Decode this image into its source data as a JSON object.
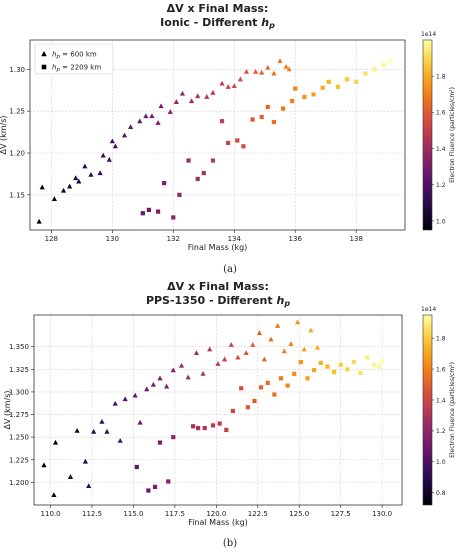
{
  "chart_data": [
    {
      "type": "scatter",
      "title": "ΔV x Final Mass:",
      "subtitle_prefix": "Ionic - Different ",
      "subtitle_var": "h",
      "subtitle_sub": "p",
      "xlabel": "Final Mass (kg)",
      "ylabel": "ΔV (km/s)",
      "xlim": [
        127.3,
        139.6
      ],
      "ylim": [
        1.108,
        1.335
      ],
      "xticks": [
        128,
        130,
        132,
        134,
        136,
        138
      ],
      "yticks": [
        1.15,
        1.2,
        1.25,
        1.3
      ],
      "grid": true,
      "legend_position": "top-left",
      "colorbar": {
        "label": "Electron Fluence (particles/cm²)",
        "exponent": "1e14",
        "min": 0.95,
        "max": 2.0,
        "ticks": [
          1.0,
          1.2,
          1.4,
          1.6,
          1.8
        ]
      },
      "panel_label": "(a)",
      "series": [
        {
          "name": "h_p = 600 km",
          "legend_var": "h",
          "legend_sub": "p",
          "legend_value": " = 600 km",
          "marker": "triangle",
          "points": [
            [
              127.6,
              1.118
            ],
            [
              127.7,
              1.159
            ],
            [
              128.1,
              1.145
            ],
            [
              128.4,
              1.155
            ],
            [
              128.6,
              1.16
            ],
            [
              128.8,
              1.17
            ],
            [
              128.9,
              1.166
            ],
            [
              129.1,
              1.184
            ],
            [
              129.3,
              1.174
            ],
            [
              129.6,
              1.176
            ],
            [
              129.7,
              1.197
            ],
            [
              129.9,
              1.192
            ],
            [
              130.0,
              1.214
            ],
            [
              130.1,
              1.208
            ],
            [
              130.4,
              1.221
            ],
            [
              130.6,
              1.231
            ],
            [
              130.9,
              1.238
            ],
            [
              131.1,
              1.244
            ],
            [
              131.3,
              1.244
            ],
            [
              131.5,
              1.236
            ],
            [
              131.6,
              1.256
            ],
            [
              131.9,
              1.249
            ],
            [
              132.1,
              1.261
            ],
            [
              132.3,
              1.271
            ],
            [
              132.6,
              1.262
            ],
            [
              132.8,
              1.268
            ],
            [
              133.1,
              1.267
            ],
            [
              133.3,
              1.272
            ],
            [
              133.6,
              1.283
            ],
            [
              133.8,
              1.279
            ],
            [
              134.0,
              1.28
            ],
            [
              134.2,
              1.288
            ],
            [
              134.4,
              1.297
            ],
            [
              134.7,
              1.297
            ],
            [
              134.9,
              1.296
            ],
            [
              135.1,
              1.302
            ],
            [
              135.3,
              1.295
            ],
            [
              135.5,
              1.31
            ],
            [
              135.7,
              1.303
            ],
            [
              135.8,
              1.3
            ]
          ]
        },
        {
          "name": "h_p = 2209 km",
          "legend_var": "h",
          "legend_sub": "p",
          "legend_value": " = 2209 km",
          "marker": "square",
          "points": [
            [
              131.0,
              1.128
            ],
            [
              131.2,
              1.132
            ],
            [
              131.5,
              1.13
            ],
            [
              131.7,
              1.164
            ],
            [
              132.0,
              1.123
            ],
            [
              132.2,
              1.15
            ],
            [
              132.5,
              1.191
            ],
            [
              132.8,
              1.169
            ],
            [
              133.0,
              1.176
            ],
            [
              133.3,
              1.191
            ],
            [
              133.6,
              1.238
            ],
            [
              133.8,
              1.212
            ],
            [
              134.1,
              1.215
            ],
            [
              134.3,
              1.208
            ],
            [
              134.6,
              1.24
            ],
            [
              134.9,
              1.243
            ],
            [
              135.1,
              1.255
            ],
            [
              135.3,
              1.237
            ],
            [
              135.6,
              1.253
            ],
            [
              135.9,
              1.262
            ],
            [
              136.0,
              1.277
            ],
            [
              136.3,
              1.267
            ],
            [
              136.6,
              1.27
            ],
            [
              136.9,
              1.278
            ],
            [
              137.1,
              1.285
            ],
            [
              137.4,
              1.279
            ],
            [
              137.7,
              1.288
            ],
            [
              138.0,
              1.285
            ],
            [
              138.3,
              1.295
            ],
            [
              138.6,
              1.3
            ],
            [
              138.9,
              1.305
            ],
            [
              139.1,
              1.31
            ]
          ]
        }
      ]
    },
    {
      "type": "scatter",
      "title": "ΔV x Final Mass:",
      "subtitle_prefix": "PPS-1350 - Different ",
      "subtitle_var": "h",
      "subtitle_sub": "p",
      "xlabel": "Final Mass (kg)",
      "ylabel": "ΔV (km/s)",
      "xlim": [
        109.0,
        131.2
      ],
      "ylim": [
        1.175,
        1.385
      ],
      "xticks": [
        110.0,
        112.5,
        115.0,
        117.5,
        120.0,
        122.5,
        125.0,
        127.5,
        130.0
      ],
      "yticks": [
        1.2,
        1.225,
        1.25,
        1.275,
        1.3,
        1.325,
        1.35
      ],
      "grid": true,
      "legend_position": "none",
      "colorbar": {
        "label": "Electron Fluence (particles/cm²)",
        "exponent": "1e14",
        "min": 0.72,
        "max": 1.95,
        "ticks": [
          0.8,
          1.0,
          1.2,
          1.4,
          1.6,
          1.8
        ]
      },
      "panel_label": "(b)",
      "series": [
        {
          "marker": "triangle",
          "points": [
            [
              109.6,
              1.219
            ],
            [
              110.2,
              1.186
            ],
            [
              110.3,
              1.244
            ],
            [
              111.2,
              1.206
            ],
            [
              111.6,
              1.257
            ],
            [
              112.1,
              1.223
            ],
            [
              112.3,
              1.196
            ],
            [
              112.6,
              1.256
            ],
            [
              113.1,
              1.267
            ],
            [
              113.4,
              1.256
            ],
            [
              113.9,
              1.287
            ],
            [
              114.2,
              1.246
            ],
            [
              114.5,
              1.292
            ],
            [
              115.1,
              1.296
            ],
            [
              115.4,
              1.266
            ],
            [
              115.8,
              1.303
            ],
            [
              116.2,
              1.308
            ],
            [
              116.6,
              1.315
            ],
            [
              117.0,
              1.306
            ],
            [
              117.4,
              1.324
            ],
            [
              117.9,
              1.329
            ],
            [
              118.3,
              1.316
            ],
            [
              118.8,
              1.343
            ],
            [
              119.2,
              1.32
            ],
            [
              119.6,
              1.347
            ],
            [
              120.1,
              1.331
            ],
            [
              120.5,
              1.336
            ],
            [
              120.9,
              1.352
            ],
            [
              121.3,
              1.338
            ],
            [
              121.8,
              1.343
            ],
            [
              122.2,
              1.352
            ],
            [
              122.6,
              1.365
            ],
            [
              122.9,
              1.336
            ],
            [
              123.3,
              1.358
            ],
            [
              123.7,
              1.373
            ],
            [
              124.1,
              1.345
            ],
            [
              124.5,
              1.353
            ],
            [
              124.9,
              1.377
            ],
            [
              125.3,
              1.347
            ],
            [
              125.7,
              1.368
            ],
            [
              126.1,
              1.349
            ]
          ]
        },
        {
          "marker": "square",
          "points": [
            [
              115.2,
              1.217
            ],
            [
              115.9,
              1.191
            ],
            [
              116.3,
              1.195
            ],
            [
              116.6,
              1.244
            ],
            [
              117.1,
              1.201
            ],
            [
              117.4,
              1.25
            ],
            [
              118.6,
              1.262
            ],
            [
              118.9,
              1.26
            ],
            [
              119.3,
              1.26
            ],
            [
              119.8,
              1.263
            ],
            [
              120.2,
              1.265
            ],
            [
              120.6,
              1.258
            ],
            [
              121.0,
              1.279
            ],
            [
              121.5,
              1.304
            ],
            [
              121.9,
              1.283
            ],
            [
              122.3,
              1.29
            ],
            [
              122.7,
              1.305
            ],
            [
              123.1,
              1.31
            ],
            [
              123.5,
              1.297
            ],
            [
              123.9,
              1.315
            ],
            [
              124.3,
              1.307
            ],
            [
              124.7,
              1.32
            ],
            [
              125.1,
              1.333
            ],
            [
              125.5,
              1.315
            ],
            [
              125.9,
              1.324
            ],
            [
              126.3,
              1.332
            ],
            [
              126.7,
              1.328
            ],
            [
              127.1,
              1.322
            ],
            [
              127.5,
              1.33
            ],
            [
              127.9,
              1.325
            ],
            [
              128.3,
              1.333
            ],
            [
              128.7,
              1.321
            ],
            [
              129.1,
              1.338
            ],
            [
              129.5,
              1.33
            ],
            [
              129.8,
              1.328
            ],
            [
              130.0,
              1.334
            ]
          ]
        }
      ]
    }
  ]
}
